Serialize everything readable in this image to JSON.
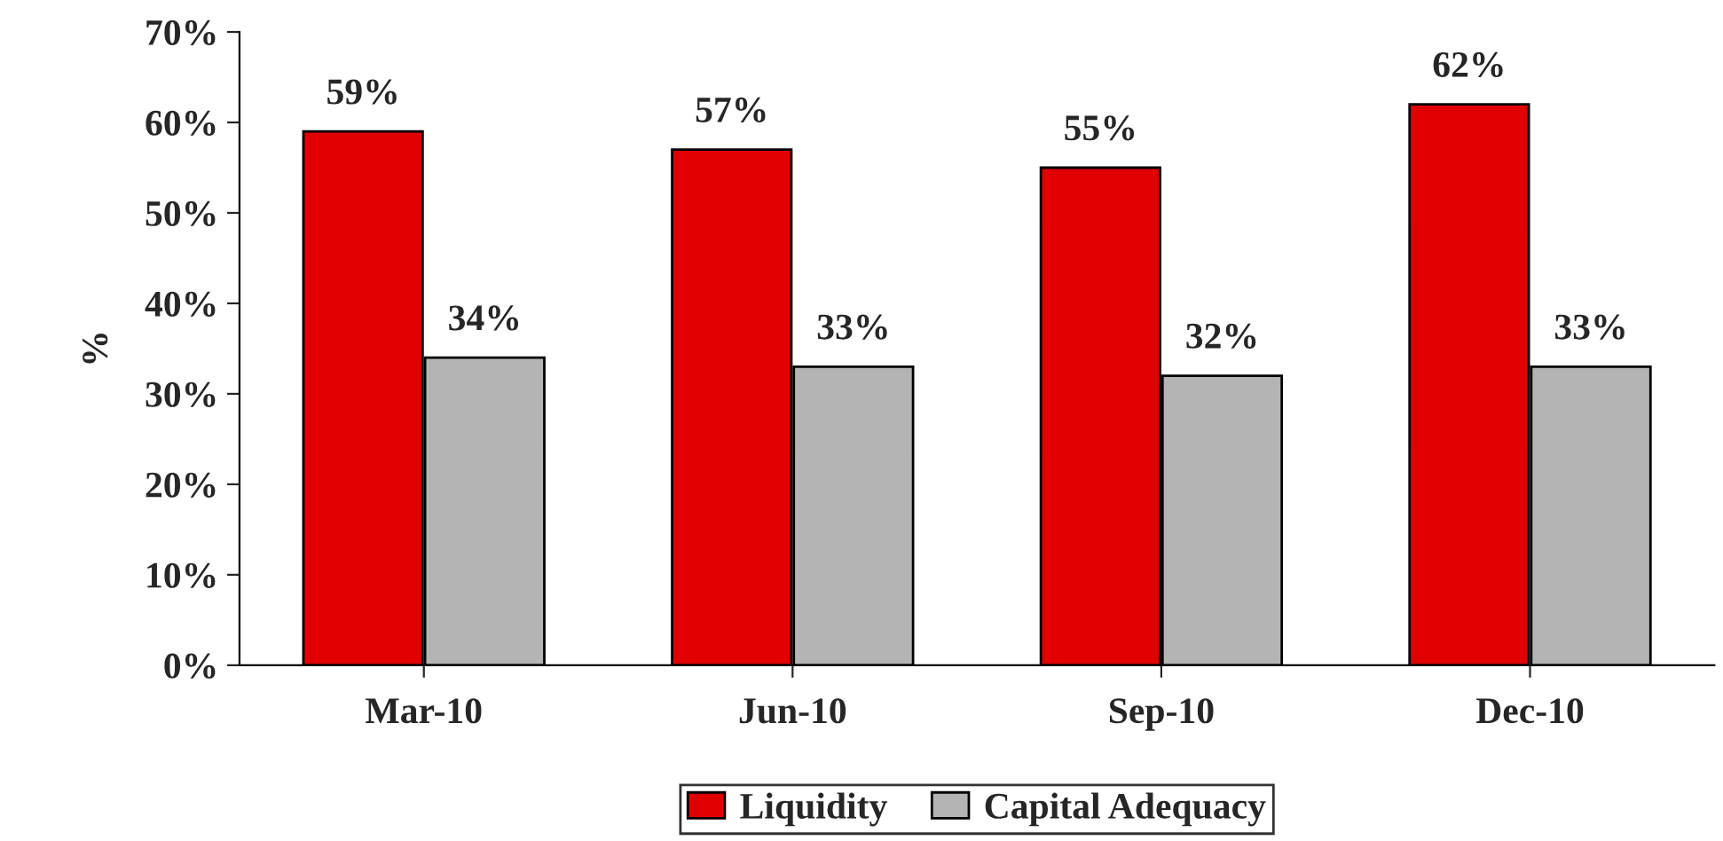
{
  "chart_data": {
    "type": "bar",
    "ylabel": "%",
    "categories": [
      "Mar-10",
      "Jun-10",
      "Sep-10",
      "Dec-10"
    ],
    "series": [
      {
        "name": "Liquidity",
        "color": "#e00000",
        "values": [
          59,
          57,
          55,
          62
        ],
        "value_labels": [
          "59%",
          "57%",
          "55%",
          "62%"
        ]
      },
      {
        "name": "Capital Adequacy",
        "color": "#b4b4b4",
        "values": [
          34,
          33,
          32,
          33
        ],
        "value_labels": [
          "34%",
          "33%",
          "32%",
          "33%"
        ]
      }
    ],
    "ylim": [
      0,
      70
    ],
    "yticks": [
      {
        "value": 0,
        "label": "0%"
      },
      {
        "value": 10,
        "label": "10%"
      },
      {
        "value": 20,
        "label": "20%"
      },
      {
        "value": 30,
        "label": "30%"
      },
      {
        "value": 40,
        "label": "40%"
      },
      {
        "value": 50,
        "label": "50%"
      },
      {
        "value": 60,
        "label": "60%"
      },
      {
        "value": 70,
        "label": "70%"
      }
    ],
    "grid": false,
    "legend": "bottom"
  }
}
